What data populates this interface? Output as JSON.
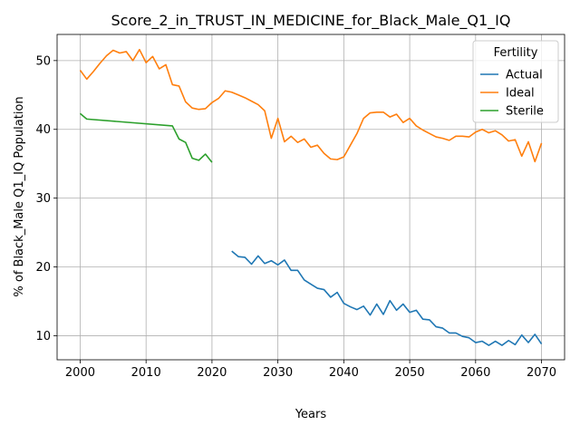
{
  "chart_data": {
    "type": "line",
    "title": "Score_2_in_TRUST_IN_MEDICINE_for_Black_Male_Q1_IQ",
    "xlabel": "Years",
    "ylabel": "% of Black_Male Q1_IQ Population",
    "xlim": [
      1996.5,
      2073.5
    ],
    "ylim": [
      6.5,
      53.8
    ],
    "xticks": [
      2000,
      2010,
      2020,
      2030,
      2040,
      2050,
      2060,
      2070
    ],
    "yticks": [
      10,
      20,
      30,
      40,
      50
    ],
    "grid": true,
    "legend": {
      "title": "Fertility",
      "placement": "top-right"
    },
    "series": [
      {
        "name": "Actual",
        "color": "#1f77b4",
        "x": [
          2023,
          2024,
          2025,
          2026,
          2027,
          2028,
          2029,
          2030,
          2031,
          2032,
          2033,
          2034,
          2035,
          2036,
          2037,
          2038,
          2039,
          2040,
          2041,
          2042,
          2043,
          2044,
          2045,
          2046,
          2047,
          2048,
          2049,
          2050,
          2051,
          2052,
          2053,
          2054,
          2055,
          2056,
          2057,
          2058,
          2059,
          2060,
          2061,
          2062,
          2063,
          2064,
          2065,
          2066,
          2067,
          2068,
          2069,
          2070
        ],
        "y": [
          22.3,
          21.5,
          21.4,
          20.4,
          21.6,
          20.5,
          20.9,
          20.3,
          21.0,
          19.5,
          19.5,
          18.1,
          17.5,
          16.9,
          16.7,
          15.6,
          16.3,
          14.7,
          14.2,
          13.8,
          14.3,
          13.0,
          14.6,
          13.1,
          15.1,
          13.7,
          14.6,
          13.4,
          13.7,
          12.4,
          12.3,
          11.3,
          11.1,
          10.4,
          10.4,
          9.9,
          9.7,
          9.0,
          9.2,
          8.6,
          9.2,
          8.6,
          9.3,
          8.7,
          10.1,
          9.0,
          10.2,
          8.8
        ]
      },
      {
        "name": "Ideal",
        "color": "#ff7f0e",
        "x": [
          2000,
          2001,
          2002,
          2003,
          2004,
          2005,
          2006,
          2007,
          2008,
          2009,
          2010,
          2011,
          2012,
          2013,
          2014,
          2015,
          2016,
          2017,
          2018,
          2019,
          2020,
          2021,
          2022,
          2023,
          2024,
          2025,
          2026,
          2027,
          2028,
          2029,
          2030,
          2031,
          2032,
          2033,
          2034,
          2035,
          2036,
          2037,
          2038,
          2039,
          2040,
          2041,
          2042,
          2043,
          2044,
          2045,
          2046,
          2047,
          2048,
          2049,
          2050,
          2051,
          2052,
          2053,
          2054,
          2055,
          2056,
          2057,
          2058,
          2059,
          2060,
          2061,
          2062,
          2063,
          2064,
          2065,
          2066,
          2067,
          2068,
          2069,
          2070
        ],
        "y": [
          48.6,
          47.3,
          48.4,
          49.6,
          50.7,
          51.5,
          51.1,
          51.3,
          50.0,
          51.6,
          49.7,
          50.6,
          48.8,
          49.4,
          46.5,
          46.3,
          44.0,
          43.1,
          42.9,
          43.0,
          43.9,
          44.5,
          45.6,
          45.4,
          45.0,
          44.6,
          44.1,
          43.6,
          42.7,
          38.7,
          41.6,
          38.2,
          39.0,
          38.1,
          38.6,
          37.4,
          37.7,
          36.5,
          35.7,
          35.6,
          36.0,
          37.7,
          39.4,
          41.6,
          42.4,
          42.5,
          42.5,
          41.8,
          42.2,
          41.0,
          41.6,
          40.5,
          39.9,
          39.4,
          38.9,
          38.7,
          38.4,
          39.0,
          39.0,
          38.9,
          39.6,
          40.0,
          39.5,
          39.8,
          39.2,
          38.3,
          38.5,
          36.1,
          38.2,
          35.3,
          38.0
        ]
      },
      {
        "name": "Sterile",
        "color": "#2ca02c",
        "x": [
          2000,
          2001,
          2014,
          2015,
          2016,
          2017,
          2018,
          2019,
          2020
        ],
        "y": [
          42.3,
          41.5,
          40.5,
          38.6,
          38.1,
          35.8,
          35.5,
          36.4,
          35.2
        ]
      }
    ]
  }
}
